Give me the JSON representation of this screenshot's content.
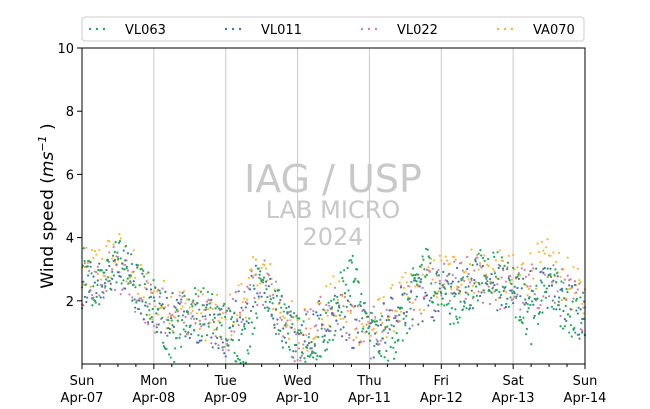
{
  "chart_data": {
    "type": "scatter",
    "xlabel": "",
    "ylabel_parts": {
      "prefix": "Wind speed (",
      "unit": "ms",
      "exponent": "−1",
      "suffix": " )"
    },
    "ylim": [
      0,
      10
    ],
    "yticks": [
      2,
      4,
      6,
      8,
      10
    ],
    "x_range_days": [
      0,
      7
    ],
    "xticks": [
      {
        "day": "Sun",
        "date": "Apr-07"
      },
      {
        "day": "Mon",
        "date": "Apr-08"
      },
      {
        "day": "Tue",
        "date": "Apr-09"
      },
      {
        "day": "Wed",
        "date": "Apr-10"
      },
      {
        "day": "Thu",
        "date": "Apr-11"
      },
      {
        "day": "Fri",
        "date": "Apr-12"
      },
      {
        "day": "Sat",
        "date": "Apr-13"
      },
      {
        "day": "Sun",
        "date": "Apr-14"
      }
    ],
    "grid": "vertical",
    "legend_position": "top",
    "watermark": [
      "IAG / USP",
      "LAB MICRO",
      "2024"
    ],
    "series": [
      {
        "name": "VL063",
        "color": "#2ca25f",
        "values": [
          [
            0.0,
            3.0
          ],
          [
            0.25,
            2.2
          ],
          [
            0.5,
            3.4
          ],
          [
            0.75,
            2.5
          ],
          [
            1.0,
            2.0
          ],
          [
            1.25,
            0.7
          ],
          [
            1.5,
            1.8
          ],
          [
            1.75,
            1.6
          ],
          [
            2.0,
            1.2
          ],
          [
            2.25,
            0.5
          ],
          [
            2.5,
            2.8
          ],
          [
            2.75,
            1.4
          ],
          [
            3.0,
            0.7
          ],
          [
            3.25,
            0.5
          ],
          [
            3.5,
            1.5
          ],
          [
            3.75,
            3.0
          ],
          [
            4.0,
            1.0
          ],
          [
            4.25,
            0.6
          ],
          [
            4.5,
            1.5
          ],
          [
            4.75,
            3.2
          ],
          [
            5.0,
            2.3
          ],
          [
            5.25,
            1.8
          ],
          [
            5.5,
            2.8
          ],
          [
            5.75,
            3.0
          ],
          [
            6.0,
            2.4
          ],
          [
            6.25,
            1.4
          ],
          [
            6.5,
            2.6
          ],
          [
            6.75,
            1.6
          ],
          [
            7.0,
            1.5
          ]
        ]
      },
      {
        "name": "VL011",
        "color": "#4a6fa5",
        "values": [
          [
            0.0,
            2.5
          ],
          [
            0.5,
            3.2
          ],
          [
            1.0,
            1.8
          ],
          [
            1.5,
            1.6
          ],
          [
            2.0,
            1.0
          ],
          [
            2.5,
            2.6
          ],
          [
            3.0,
            0.6
          ],
          [
            3.5,
            1.8
          ],
          [
            4.0,
            0.8
          ],
          [
            4.5,
            1.8
          ],
          [
            5.0,
            2.2
          ],
          [
            5.5,
            2.6
          ],
          [
            6.0,
            2.2
          ],
          [
            6.5,
            2.4
          ],
          [
            7.0,
            1.6
          ]
        ]
      },
      {
        "name": "VL022",
        "color": "#c583a8",
        "values": [
          [
            0.0,
            2.6
          ],
          [
            0.5,
            3.1
          ],
          [
            1.0,
            1.7
          ],
          [
            1.5,
            1.5
          ],
          [
            2.0,
            1.1
          ],
          [
            2.5,
            2.7
          ],
          [
            3.0,
            0.7
          ],
          [
            3.5,
            1.9
          ],
          [
            4.0,
            0.9
          ],
          [
            4.5,
            1.9
          ],
          [
            5.0,
            2.4
          ],
          [
            5.5,
            2.7
          ],
          [
            6.0,
            2.3
          ],
          [
            6.5,
            2.5
          ],
          [
            7.0,
            1.8
          ]
        ]
      },
      {
        "name": "VA070",
        "color": "#f5b942",
        "values": [
          [
            0.0,
            2.8
          ],
          [
            0.5,
            3.5
          ],
          [
            1.0,
            2.0
          ],
          [
            1.5,
            1.7
          ],
          [
            2.0,
            1.3
          ],
          [
            2.5,
            3.0
          ],
          [
            3.0,
            0.9
          ],
          [
            3.5,
            2.0
          ],
          [
            4.0,
            1.1
          ],
          [
            4.5,
            2.1
          ],
          [
            5.0,
            2.8
          ],
          [
            5.5,
            3.0
          ],
          [
            6.0,
            2.7
          ],
          [
            6.5,
            3.2
          ],
          [
            7.0,
            2.0
          ]
        ]
      }
    ]
  }
}
